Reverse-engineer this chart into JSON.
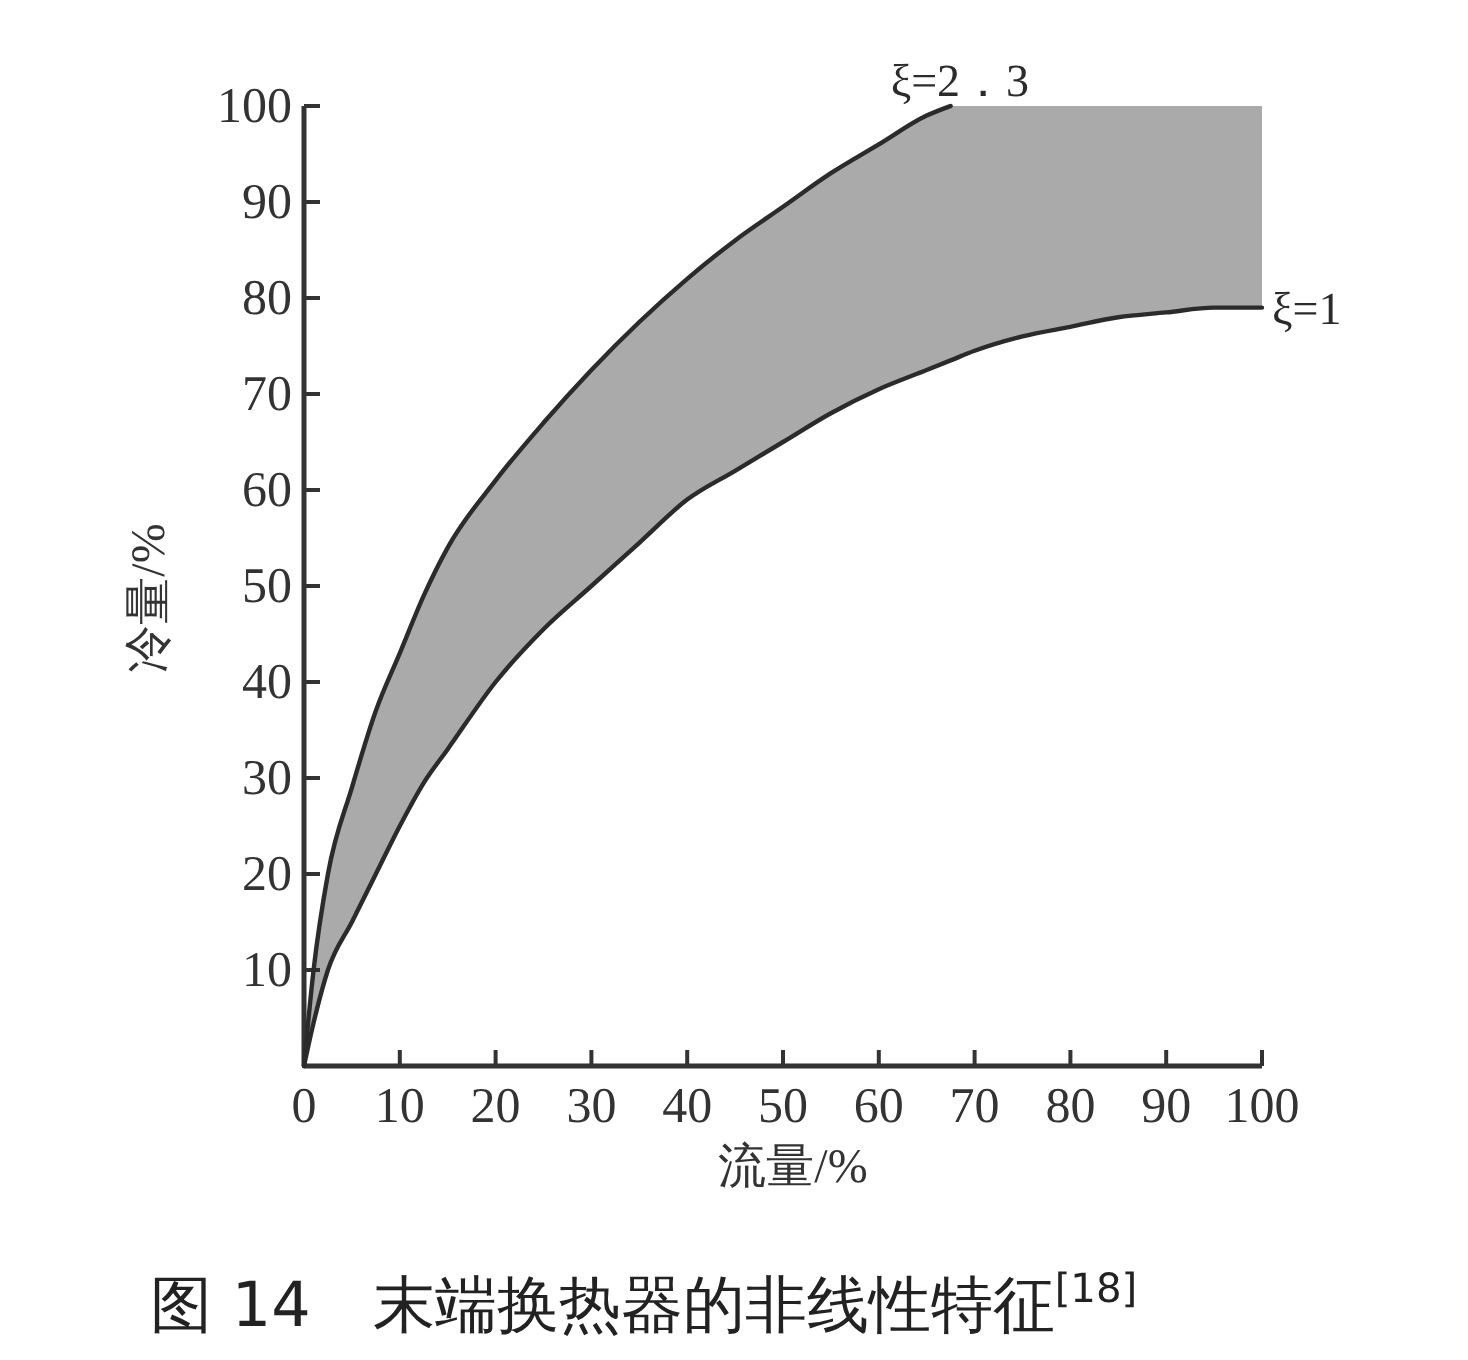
{
  "chart_data": {
    "type": "line",
    "title": "图 14　末端换热器的非线性特征$^{[18]}$",
    "xlabel": "流量/%",
    "ylabel": "冷量/%",
    "xlim": [
      0,
      100
    ],
    "ylim": [
      0,
      100
    ],
    "xticks": [
      0,
      10,
      20,
      30,
      40,
      50,
      60,
      70,
      80,
      90,
      100
    ],
    "yticks": [
      10,
      20,
      30,
      40,
      50,
      60,
      70,
      80,
      90,
      100
    ],
    "series": [
      {
        "name": "ξ=2．3",
        "color": "#2b2b2b",
        "x": [
          0,
          1,
          2.5,
          5,
          7.5,
          10,
          12.5,
          15,
          20,
          25,
          30,
          35,
          40,
          45,
          50,
          55,
          60,
          65,
          67.5
        ],
        "values": [
          0,
          10,
          20,
          29,
          37,
          43,
          49,
          54,
          61,
          67,
          72.5,
          77.5,
          82,
          86,
          89.5,
          93,
          96,
          99,
          100
        ]
      },
      {
        "name": "ξ=1",
        "color": "#2b2b2b",
        "x": [
          0,
          1,
          2.5,
          5,
          7.5,
          10,
          12.5,
          15,
          20,
          25,
          30,
          35,
          40,
          45,
          50,
          55,
          60,
          65,
          67.5,
          70,
          75,
          80,
          85,
          90,
          95,
          100
        ],
        "values": [
          0,
          4.5,
          10,
          15,
          20,
          25,
          29.5,
          33,
          40,
          45.5,
          50,
          54.5,
          59,
          62,
          65,
          68,
          70.5,
          72.5,
          73.5,
          74.5,
          76,
          77,
          78,
          78.5,
          79,
          79
        ],
        "lower": [
          0,
          4.5,
          10,
          15,
          20,
          25,
          29.5,
          33,
          40,
          45.5,
          50,
          54.5,
          59,
          62,
          65,
          68,
          70.5,
          72.5,
          73.5,
          74.5,
          76,
          77,
          78,
          78.5,
          79,
          79
        ],
        "upper": [
          0,
          10,
          20,
          29,
          37,
          43,
          49,
          54,
          61,
          67,
          72.5,
          77.5,
          82,
          86,
          89.5,
          93,
          96,
          99,
          100,
          100,
          100,
          100,
          100,
          100,
          100,
          100
        ]
      }
    ]
  }
}
